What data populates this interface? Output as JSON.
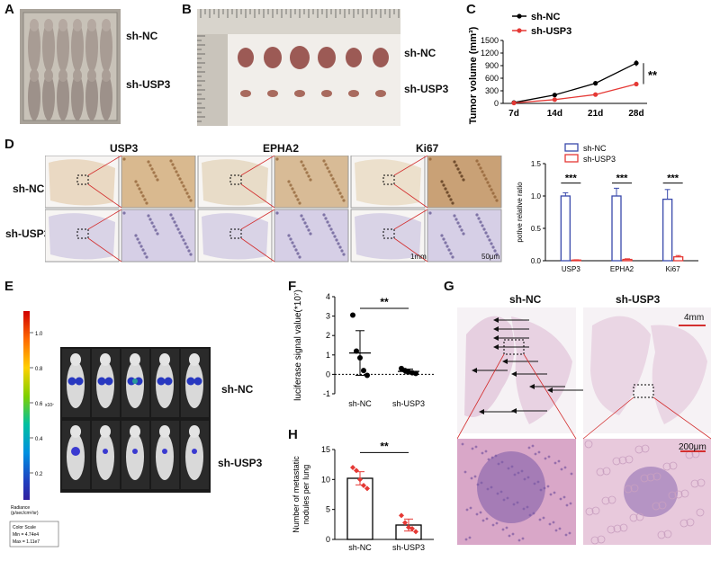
{
  "panels": {
    "A": "A",
    "B": "B",
    "C": "C",
    "D": "D",
    "E": "E",
    "F": "F",
    "G": "G",
    "H": "H"
  },
  "groups": {
    "nc": "sh-NC",
    "usp3": "sh-USP3"
  },
  "panel_d": {
    "markers": [
      "USP3",
      "EPHA2",
      "Ki67"
    ],
    "scale_low": "1mm",
    "scale_high": "50μm"
  },
  "panel_e": {
    "scale_label": "Radiance\n(p/sec/cm²/sr)",
    "exponent": "x10⁷",
    "ticks": [
      "1.0",
      "0.8",
      "0.6",
      "0.4",
      "0.2"
    ],
    "color_scale_title": "Color Scale",
    "min_label": "Min = 4.74e4",
    "max_label": "Max = 1.11e7"
  },
  "panel_g": {
    "scale_top": "4mm",
    "scale_bottom": "200μm"
  },
  "colors": {
    "nc": "#000000",
    "usp3": "#e53935",
    "bar_nc": "#3949ab",
    "bar_usp3": "#e53935",
    "sig": "#000000"
  },
  "chart_data": [
    {
      "id": "C",
      "type": "line",
      "x": [
        "7d",
        "14d",
        "21d",
        "28d"
      ],
      "ylabel": "Tumor volume (mm³)",
      "ylim": [
        0,
        1500
      ],
      "yticks": [
        "0",
        "300",
        "600",
        "900",
        "1200",
        "1500"
      ],
      "series": [
        {
          "name": "sh-NC",
          "values": [
            20,
            200,
            480,
            960
          ],
          "err": [
            10,
            20,
            50,
            70
          ]
        },
        {
          "name": "sh-USP3",
          "values": [
            10,
            90,
            210,
            460
          ],
          "err": [
            5,
            10,
            20,
            30
          ]
        }
      ],
      "annotation": "**",
      "legend": "top-left"
    },
    {
      "id": "D",
      "type": "bar",
      "categories": [
        "USP3",
        "EPHA2",
        "Ki67"
      ],
      "ylabel": "potive relative ratio",
      "ylim": [
        0,
        1.5
      ],
      "yticks": [
        "0.0",
        "0.5",
        "1.0",
        "1.5"
      ],
      "series": [
        {
          "name": "sh-NC",
          "values": [
            1.0,
            1.0,
            0.95
          ],
          "err": [
            0.05,
            0.12,
            0.15
          ]
        },
        {
          "name": "sh-USP3",
          "values": [
            0.01,
            0.02,
            0.06
          ],
          "err": [
            0.005,
            0.01,
            0.02
          ]
        }
      ],
      "annotations": [
        "***",
        "***",
        "***"
      ],
      "legend": "top"
    },
    {
      "id": "F",
      "type": "scatter",
      "categories": [
        "sh-NC",
        "sh-USP3"
      ],
      "ylabel": "luciferase signal value(*10⁷)",
      "ylim": [
        -1,
        4
      ],
      "yticks": [
        "-1",
        "0",
        "1",
        "2",
        "3",
        "4"
      ],
      "means": [
        1.1,
        0.15
      ],
      "sd": [
        1.15,
        0.12
      ],
      "points": [
        [
          3.05,
          1.2,
          0.85,
          0.2,
          -0.05
        ],
        [
          0.3,
          0.2,
          0.12,
          0.08,
          0.05
        ]
      ],
      "annotation": "**"
    },
    {
      "id": "H",
      "type": "bar",
      "categories": [
        "sh-NC",
        "sh-USP3"
      ],
      "ylabel": "Number of metastatic nodules per lung",
      "ylim": [
        0,
        15
      ],
      "yticks": [
        "0",
        "5",
        "10",
        "15"
      ],
      "values": [
        10.2,
        2.4
      ],
      "err": [
        1.1,
        1.0
      ],
      "points": [
        [
          12,
          11.5,
          10,
          9,
          8.5
        ],
        [
          4,
          2.8,
          2,
          1.8,
          1.3
        ]
      ],
      "annotation": "**"
    }
  ]
}
